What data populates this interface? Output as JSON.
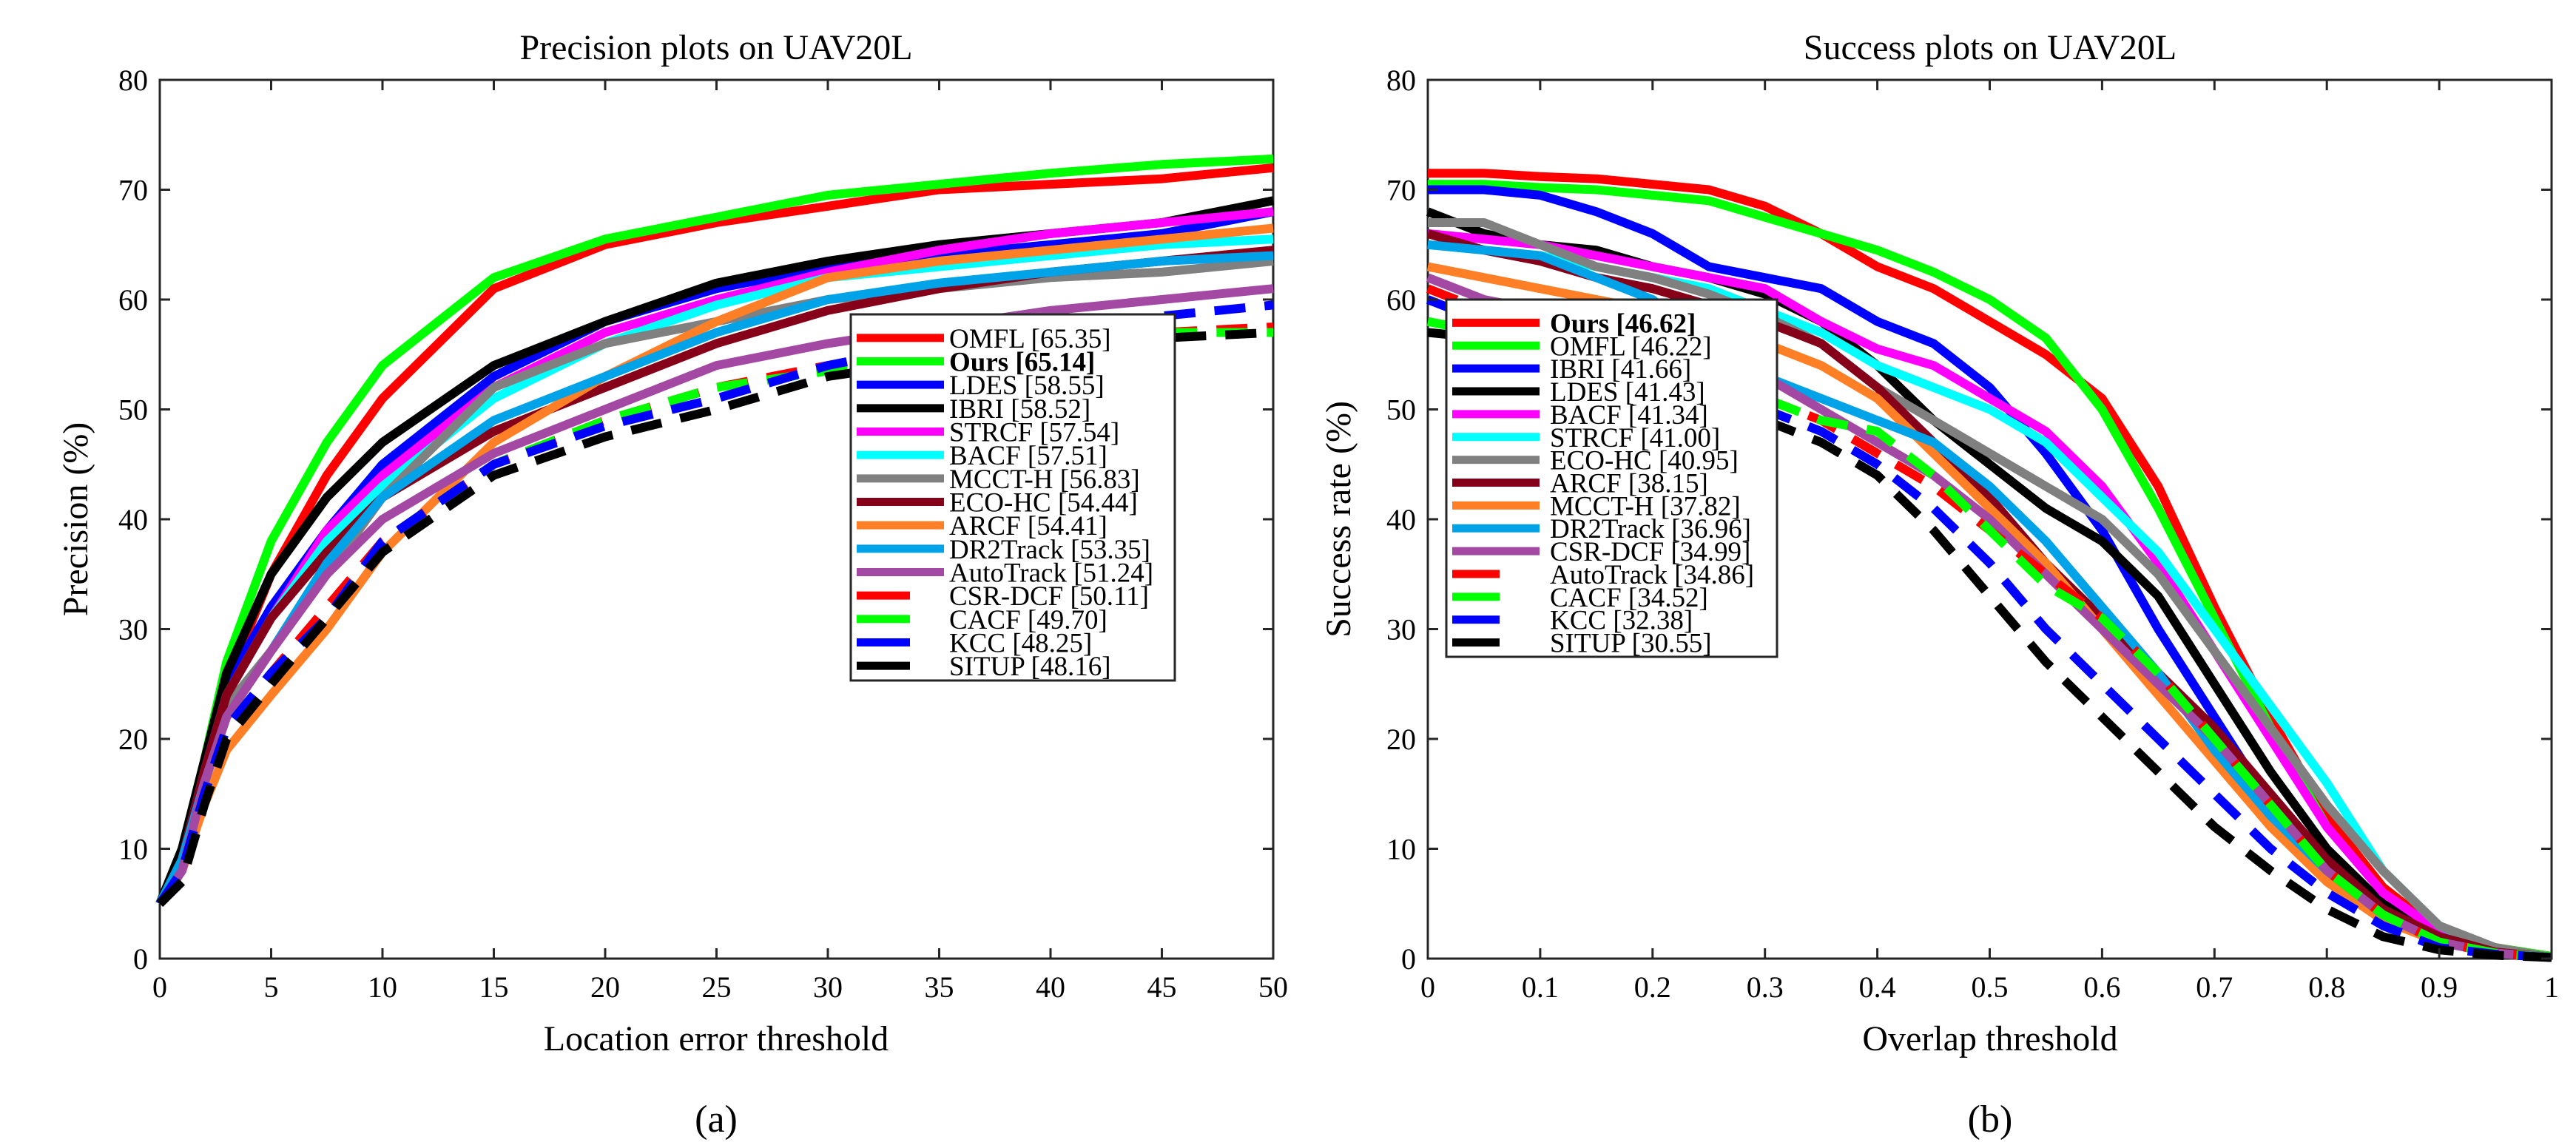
{
  "chart_data": [
    {
      "type": "line",
      "panel_label": "(a)",
      "title": "Precision plots on UAV20L",
      "xlabel": "Location error threshold",
      "ylabel": "Precision (%)",
      "xlim": [
        0,
        50
      ],
      "ylim": [
        0,
        80
      ],
      "xticks": [
        0,
        5,
        10,
        15,
        20,
        25,
        30,
        35,
        40,
        45,
        50
      ],
      "yticks": [
        0,
        10,
        20,
        30,
        40,
        50,
        60,
        70,
        80
      ],
      "legend_position": "lower-right",
      "x": [
        0,
        1,
        2,
        3,
        5,
        7.5,
        10,
        15,
        20,
        25,
        30,
        35,
        40,
        45,
        50
      ],
      "series": [
        {
          "name": "OMFL [65.35]",
          "color": "#ff0000",
          "dashed": false,
          "bold": false,
          "values": [
            5,
            9,
            17,
            25,
            35,
            44,
            51,
            61,
            65,
            67,
            68.5,
            70,
            70.5,
            71,
            72
          ]
        },
        {
          "name": "Ours [65.14]",
          "color": "#00ff00",
          "dashed": false,
          "bold": true,
          "values": [
            5,
            10,
            18,
            27,
            38,
            47,
            54,
            62,
            65.5,
            67.5,
            69.5,
            70.5,
            71.5,
            72.3,
            72.8
          ]
        },
        {
          "name": "LDES [58.55]",
          "color": "#0000ff",
          "dashed": false,
          "bold": false,
          "values": [
            5,
            9,
            17,
            25,
            32,
            39,
            45,
            53,
            58,
            61,
            63,
            64,
            65,
            66,
            68
          ]
        },
        {
          "name": "IBRI [58.52]",
          "color": "#000000",
          "dashed": false,
          "bold": false,
          "values": [
            5,
            10,
            18,
            26,
            35,
            42,
            47,
            54,
            58,
            61.5,
            63.5,
            65,
            66,
            67,
            69
          ]
        },
        {
          "name": "STRCF [57.54]",
          "color": "#ff00ff",
          "dashed": false,
          "bold": false,
          "values": [
            5,
            9,
            17,
            24,
            31,
            39,
            44,
            52,
            57,
            60,
            62.5,
            64.5,
            66,
            67,
            68
          ]
        },
        {
          "name": "BACF [57.51]",
          "color": "#00ffff",
          "dashed": false,
          "bold": false,
          "values": [
            5,
            9,
            17,
            24,
            31,
            38,
            43,
            51,
            56,
            59.5,
            62,
            63,
            64,
            65,
            65.5
          ]
        },
        {
          "name": "MCCT-H [56.83]",
          "color": "#808080",
          "dashed": false,
          "bold": false,
          "values": [
            5,
            9,
            17,
            23,
            28,
            35,
            42,
            52,
            56,
            58,
            60,
            61,
            62,
            62.5,
            63.5
          ]
        },
        {
          "name": "ECO-HC [54.44]",
          "color": "#850018",
          "dashed": false,
          "bold": false,
          "values": [
            5,
            9,
            17,
            24,
            31,
            37,
            42,
            48,
            52,
            56,
            59,
            61,
            62.5,
            63.5,
            64.5
          ]
        },
        {
          "name": "ARCF [54.41]",
          "color": "#ff7f27",
          "dashed": false,
          "bold": false,
          "values": [
            5,
            8,
            14,
            19,
            24,
            30,
            37,
            47,
            53,
            58,
            62,
            63.5,
            64.5,
            65.5,
            66.5
          ]
        },
        {
          "name": "DR2Track [53.35]",
          "color": "#00a2e8",
          "dashed": false,
          "bold": false,
          "values": [
            5,
            9,
            16,
            22,
            28,
            36,
            42,
            49,
            53,
            57,
            60,
            61.5,
            62.5,
            63.5,
            64
          ]
        },
        {
          "name": "AutoTrack [51.24]",
          "color": "#a349a4",
          "dashed": false,
          "bold": false,
          "values": [
            5,
            8,
            16,
            22,
            28,
            35,
            40,
            46,
            50,
            54,
            56,
            57.5,
            59,
            60,
            61
          ]
        },
        {
          "name": "CSR-DCF [50.11]",
          "color": "#ff0000",
          "dashed": true,
          "bold": false,
          "values": [
            5,
            8,
            15,
            21,
            26,
            32,
            38,
            45,
            49,
            52,
            54,
            55.5,
            56.5,
            57,
            57.5
          ]
        },
        {
          "name": "CACF [49.70]",
          "color": "#00ff00",
          "dashed": true,
          "bold": false,
          "values": [
            5,
            8,
            15,
            21,
            26,
            31,
            38,
            45,
            49,
            52,
            53.5,
            55,
            56,
            57,
            57
          ]
        },
        {
          "name": "KCC [48.25]",
          "color": "#0000ff",
          "dashed": true,
          "bold": false,
          "values": [
            5,
            8,
            15,
            21,
            26,
            31,
            38,
            45,
            48.5,
            51,
            54,
            56,
            57,
            58.5,
            59.5
          ]
        },
        {
          "name": "SITUP [48.16]",
          "color": "#000000",
          "dashed": true,
          "bold": false,
          "values": [
            5,
            7,
            14,
            20,
            25,
            31,
            37,
            44,
            47.5,
            50,
            53,
            54.5,
            55.5,
            56.5,
            57
          ]
        }
      ]
    },
    {
      "type": "line",
      "panel_label": "(b)",
      "title": "Success plots on UAV20L",
      "xlabel": "Overlap threshold",
      "ylabel": "Success rate (%)",
      "xlim": [
        0,
        1
      ],
      "ylim": [
        0,
        80
      ],
      "xticks": [
        0,
        0.1,
        0.2,
        0.3,
        0.4,
        0.5,
        0.6,
        0.7,
        0.8,
        0.9,
        1
      ],
      "yticks": [
        0,
        10,
        20,
        30,
        40,
        50,
        60,
        70,
        80
      ],
      "legend_position": "lower-left",
      "x": [
        0,
        0.05,
        0.1,
        0.15,
        0.2,
        0.25,
        0.3,
        0.35,
        0.4,
        0.45,
        0.5,
        0.55,
        0.6,
        0.65,
        0.7,
        0.75,
        0.8,
        0.85,
        0.9,
        0.95,
        1
      ],
      "series": [
        {
          "name": "Ours [46.62]",
          "color": "#ff0000",
          "dashed": false,
          "bold": true,
          "values": [
            71.5,
            71.5,
            71.2,
            71,
            70.5,
            70,
            68.5,
            66,
            63,
            61,
            58,
            55,
            51,
            43,
            32,
            22,
            13,
            6.5,
            2.5,
            1,
            0.2
          ]
        },
        {
          "name": "OMFL [46.22]",
          "color": "#00ff00",
          "dashed": false,
          "bold": false,
          "values": [
            70.5,
            70.5,
            70.2,
            70,
            69.5,
            69,
            67.5,
            66,
            64.5,
            62.5,
            60,
            56.5,
            50,
            41,
            31,
            21,
            12,
            6,
            2.5,
            1,
            0.2
          ]
        },
        {
          "name": "IBRI [41.66]",
          "color": "#0000ff",
          "dashed": false,
          "bold": false,
          "values": [
            70,
            70,
            69.5,
            68,
            66,
            63,
            62,
            61,
            58,
            56,
            52,
            46,
            39,
            30,
            22,
            14,
            8,
            4,
            1.5,
            0.6,
            0.1
          ]
        },
        {
          "name": "LDES [41.43]",
          "color": "#000000",
          "dashed": false,
          "bold": false,
          "values": [
            68,
            66,
            65,
            64.5,
            63,
            62,
            60.5,
            58,
            54,
            49,
            45,
            41,
            38,
            33,
            25,
            17,
            10,
            5,
            2,
            0.6,
            0.1
          ]
        },
        {
          "name": "BACF [41.34]",
          "color": "#ff00ff",
          "dashed": false,
          "bold": false,
          "values": [
            66,
            65.5,
            65,
            64,
            63,
            62,
            61,
            58,
            55.5,
            54,
            51,
            48,
            43,
            36,
            28,
            20,
            12,
            6,
            2.5,
            0.8,
            0.1
          ]
        },
        {
          "name": "STRCF [41.00]",
          "color": "#00ffff",
          "dashed": false,
          "bold": false,
          "values": [
            65,
            64.5,
            64,
            63,
            62,
            61,
            59,
            57,
            54,
            52,
            50,
            47,
            42,
            37,
            30,
            23,
            16,
            8,
            3,
            0.8,
            0.1
          ]
        },
        {
          "name": "ECO-HC [40.95]",
          "color": "#808080",
          "dashed": false,
          "bold": false,
          "values": [
            67,
            67,
            65,
            63,
            62,
            60.5,
            58.5,
            56,
            52,
            49,
            46,
            43,
            40,
            35,
            28,
            21,
            14,
            8,
            3,
            1,
            0.1
          ]
        },
        {
          "name": "ARCF [38.15]",
          "color": "#850018",
          "dashed": false,
          "bold": false,
          "values": [
            66,
            64.5,
            63.5,
            62,
            61,
            59.5,
            58,
            56,
            52,
            47,
            42,
            36,
            31,
            26,
            21,
            15,
            9,
            4.5,
            2,
            0.6,
            0.1
          ]
        },
        {
          "name": "MCCT-H [37.82]",
          "color": "#ff7f27",
          "dashed": false,
          "bold": false,
          "values": [
            63,
            62,
            61,
            60,
            59,
            58,
            56,
            54,
            51,
            46,
            41,
            36,
            30,
            24,
            18,
            12,
            7,
            3.5,
            1.5,
            0.5,
            0.1
          ]
        },
        {
          "name": "DR2Track [36.96]",
          "color": "#00a2e8",
          "dashed": false,
          "bold": false,
          "values": [
            65,
            64.5,
            64,
            62,
            60,
            56,
            53,
            51,
            49,
            47,
            43,
            38,
            32,
            26,
            19,
            13,
            8,
            4,
            1.5,
            0.5,
            0.1
          ]
        },
        {
          "name": "CSR-DCF [34.99]",
          "color": "#a349a4",
          "dashed": false,
          "bold": false,
          "values": [
            62,
            60,
            59,
            58,
            57,
            55,
            53,
            50,
            47,
            44,
            40,
            35,
            30,
            25,
            20,
            14,
            8,
            4,
            1.5,
            0.5,
            0.1
          ]
        },
        {
          "name": "AutoTrack [34.86]",
          "color": "#ff0000",
          "dashed": true,
          "bold": false,
          "values": [
            61,
            59,
            57,
            55,
            54,
            52,
            51,
            49,
            46,
            43,
            39,
            35,
            31,
            26,
            20,
            14,
            8,
            4,
            1.5,
            0.5,
            0.1
          ]
        },
        {
          "name": "CACF [34.52]",
          "color": "#00ff00",
          "dashed": true,
          "bold": false,
          "values": [
            58,
            57,
            56,
            55,
            54,
            52.5,
            51,
            49,
            48,
            44,
            39,
            34,
            31,
            26,
            20,
            14,
            8,
            4,
            1.5,
            0.5,
            0.1
          ]
        },
        {
          "name": "KCC [32.38]",
          "color": "#0000ff",
          "dashed": true,
          "bold": false,
          "values": [
            60,
            58,
            57,
            55,
            53,
            51,
            50,
            48,
            45,
            41,
            36,
            30,
            25,
            20,
            15,
            10,
            6,
            3,
            1,
            0.4,
            0.1
          ]
        },
        {
          "name": "SITUP [30.55]",
          "color": "#000000",
          "dashed": true,
          "bold": false,
          "values": [
            57,
            56.5,
            56,
            55,
            53,
            51,
            49,
            47,
            44,
            39,
            33,
            27,
            22,
            17,
            12,
            8,
            4.5,
            2,
            0.8,
            0.3,
            0.1
          ]
        }
      ]
    }
  ]
}
